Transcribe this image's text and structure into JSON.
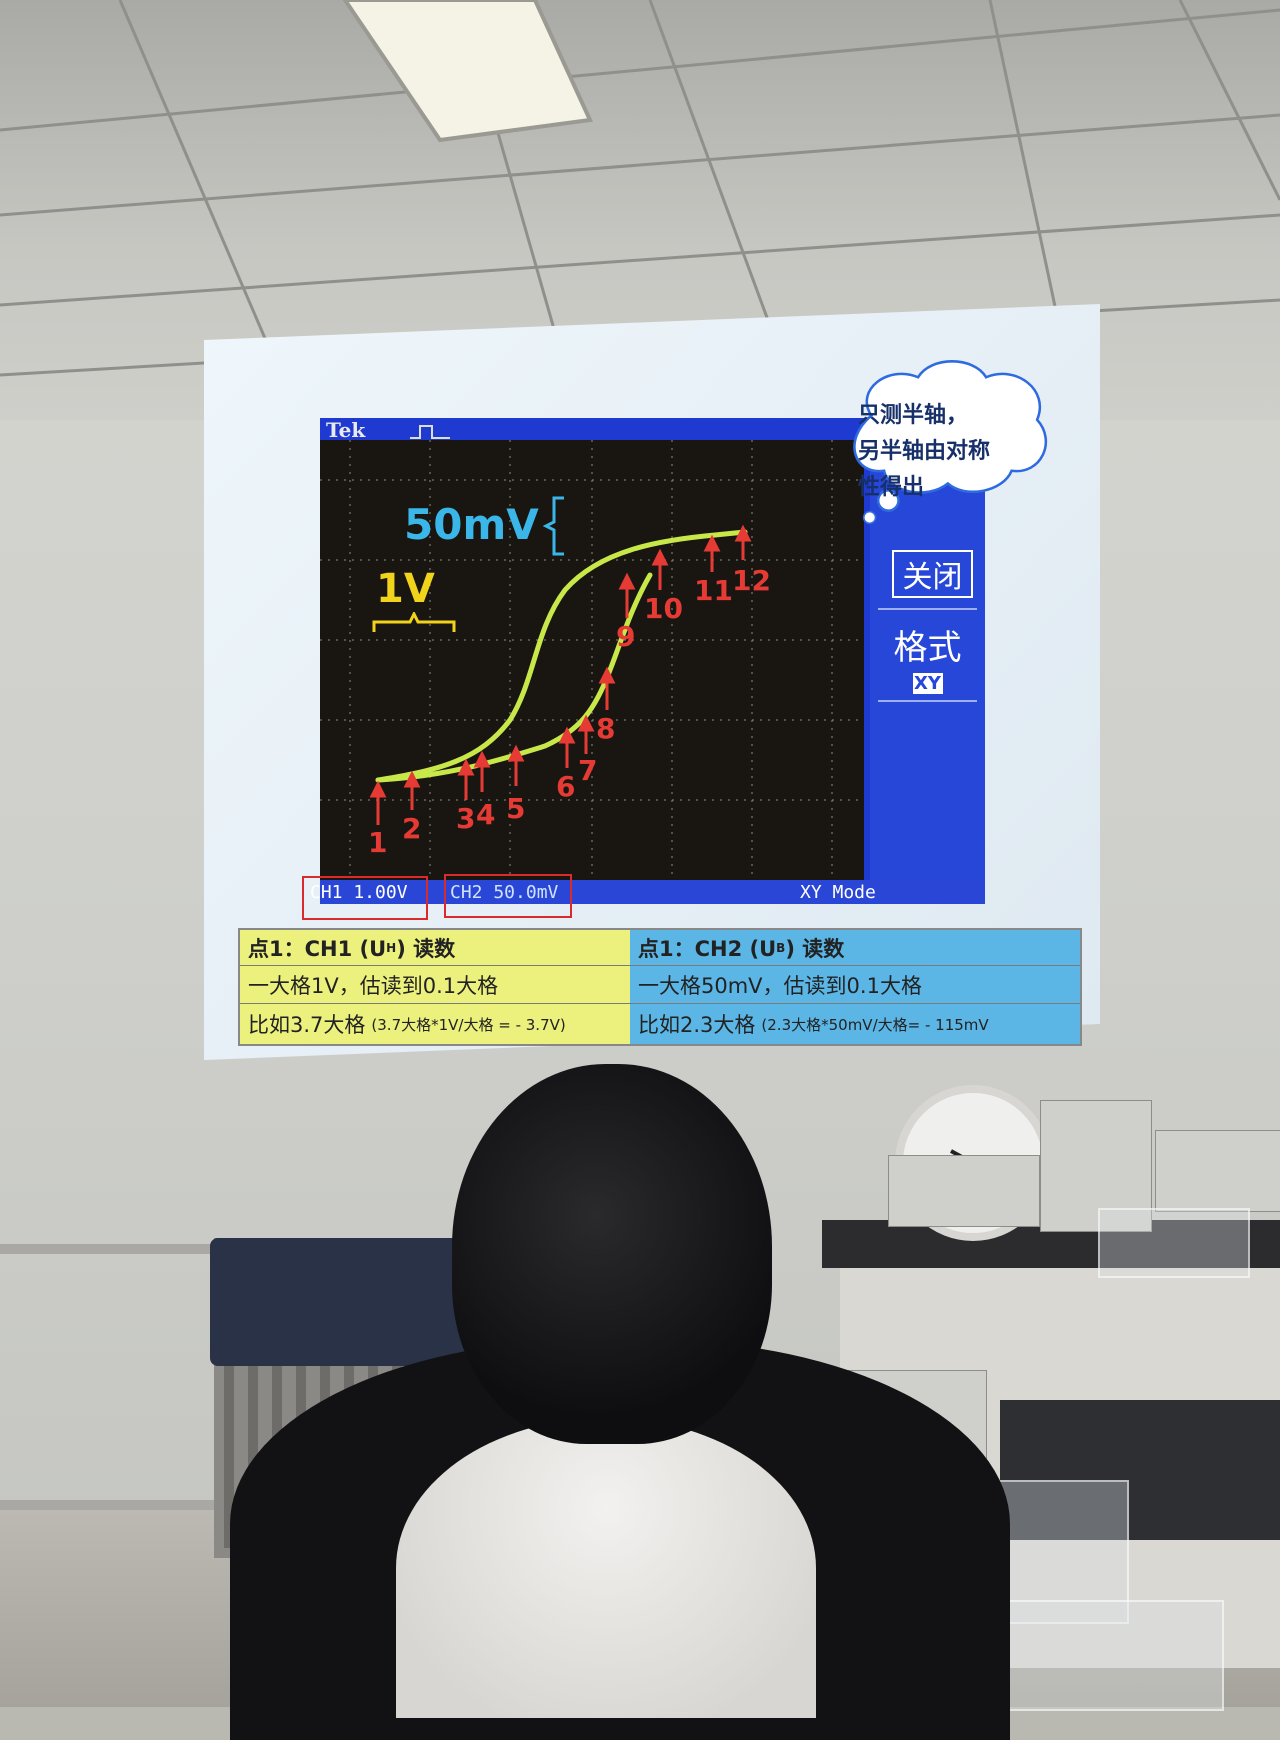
{
  "scope": {
    "brand": "Tek",
    "ch1": "CH1  1.00V",
    "ch2": "CH2  50.0mV",
    "mode": "XY Mode",
    "menu_close": "关闭",
    "menu_format": "格式",
    "menu_xy": "XY"
  },
  "annotations": {
    "v_scale": "50mV",
    "h_scale": "1V",
    "points": [
      "1",
      "2",
      "3",
      "4",
      "5",
      "6",
      "7",
      "8",
      "9",
      "10",
      "11",
      "12"
    ],
    "cloud_line1": "只测半轴，",
    "cloud_line2": "另半轴由对称",
    "cloud_line3": "性得出"
  },
  "table": {
    "left_header": "点1：CH1 (U",
    "left_header_sub": "H",
    "left_header_end": ") 读数",
    "right_header": "点1：CH2 (U",
    "right_header_sub": "B",
    "right_header_end": ") 读数",
    "left_row1": "一大格1V，估读到0.1大格",
    "right_row1": "一大格50mV，估读到0.1大格",
    "left_row2": "比如3.7大格",
    "left_row2_small": "(3.7大格*1V/大格 = - 3.7V)",
    "right_row2": "比如2.3大格",
    "right_row2_small": "(2.3大格*50mV/大格=  - 115mV"
  },
  "colors": {
    "scope_blue": "#1f3ad1",
    "trace": "#c8e84a",
    "label_red": "#e63a34",
    "cyan_label": "#3ab6e8",
    "yellow_label": "#f2d31b",
    "table_yellow": "#ecf07c",
    "table_blue": "#5bb6e6"
  }
}
